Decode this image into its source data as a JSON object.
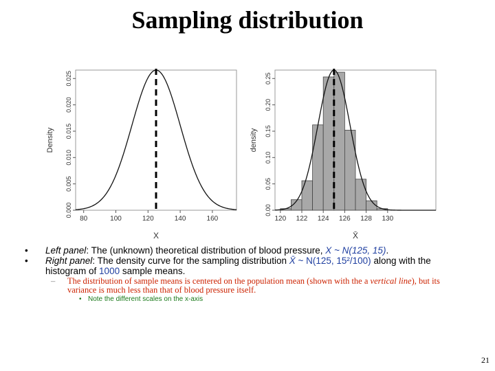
{
  "slide": {
    "title": "Sampling distribution",
    "page_number": "21"
  },
  "bullets": [
    {
      "italic": "Left panel",
      "text": ": The (unknown) theoretical distribution of blood pressure, ",
      "formula": "X ~ N(125, 15)",
      "after": "."
    },
    {
      "italic": "Right panel",
      "text": ": The density curve for the sampling distribution ",
      "formula_var": "X̄",
      "formula": " ~ N(125, 15²/100)",
      "after_1": " along with the histogram of ",
      "count": "1000",
      "after_2": " sample means."
    }
  ],
  "sub_bullet": {
    "text_1": "The distribution of sample means is centered on the population mean (shown with the a ",
    "italic": "vertical line",
    "text_2": "), but its variance is much less than that of blood pressure itself."
  },
  "sub_sub_bullet": {
    "text": "Note the different scales on the x-axis"
  },
  "chart_data": [
    {
      "type": "line",
      "ylabel": "Density",
      "xlabel": "X",
      "xlim": [
        75,
        175
      ],
      "ylim": [
        0,
        0.0266
      ],
      "xticks": [
        80,
        100,
        120,
        140,
        160
      ],
      "yticks": [
        0.0,
        0.005,
        0.01,
        0.015,
        0.02,
        0.025
      ],
      "ytick_labels": [
        "0.000",
        "0.005",
        "0.010",
        "0.015",
        "0.020",
        "0.025"
      ],
      "curve": {
        "distribution": "normal",
        "mean": 125,
        "sd": 15
      },
      "vline": 125
    },
    {
      "type": "bar",
      "ylabel": "density",
      "xlabel": "X̄",
      "xlim": [
        119.5,
        134.5
      ],
      "ylim": [
        0,
        0.266
      ],
      "xticks": [
        120,
        122,
        124,
        126,
        128,
        130
      ],
      "yticks": [
        0.0,
        0.05,
        0.1,
        0.15,
        0.2,
        0.25
      ],
      "ytick_labels": [
        "0.00",
        "0.05",
        "0.10",
        "0.15",
        "0.20",
        "0.25"
      ],
      "bins": [
        {
          "x0": 120,
          "x1": 121,
          "value": 0.003
        },
        {
          "x0": 121,
          "x1": 122,
          "value": 0.02
        },
        {
          "x0": 122,
          "x1": 123,
          "value": 0.056
        },
        {
          "x0": 123,
          "x1": 124,
          "value": 0.162
        },
        {
          "x0": 124,
          "x1": 125,
          "value": 0.253
        },
        {
          "x0": 125,
          "x1": 126,
          "value": 0.262
        },
        {
          "x0": 126,
          "x1": 127,
          "value": 0.152
        },
        {
          "x0": 127,
          "x1": 128,
          "value": 0.059
        },
        {
          "x0": 128,
          "x1": 129,
          "value": 0.018
        },
        {
          "x0": 129,
          "x1": 130,
          "value": 0.003
        }
      ],
      "curve": {
        "distribution": "normal",
        "mean": 125,
        "sd": 1.5
      },
      "vline": 125
    }
  ]
}
